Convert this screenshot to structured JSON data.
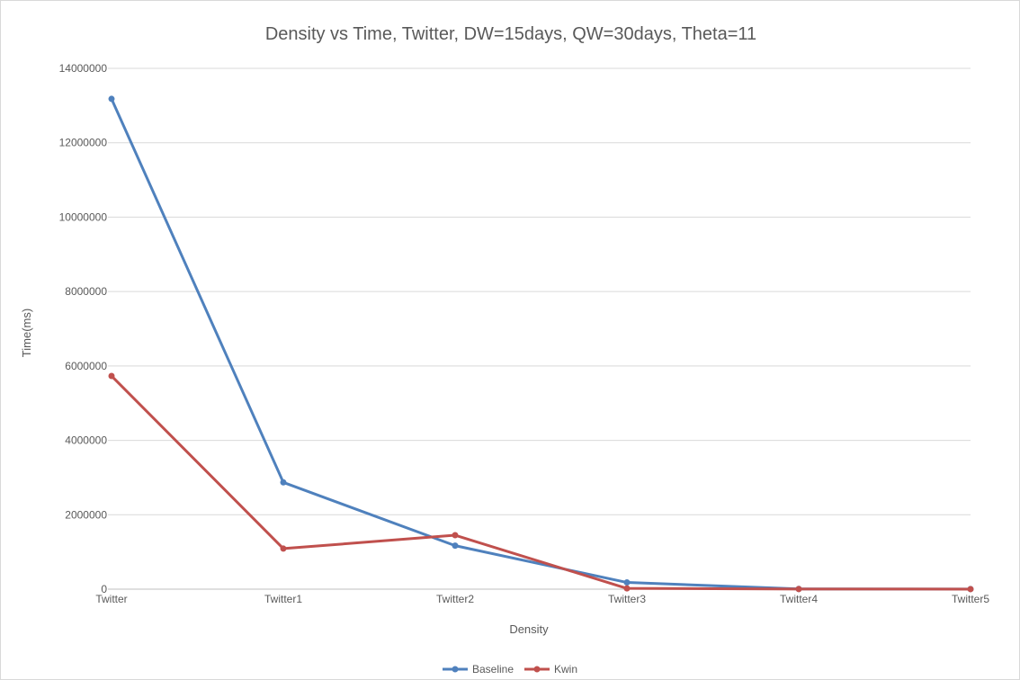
{
  "chart_data": {
    "type": "line",
    "title": "Density vs Time, Twitter, DW=15days, QW=30days, Theta=11",
    "xlabel": "Density",
    "ylabel": "Time(ms)",
    "categories": [
      "Twitter",
      "Twitter1",
      "Twitter2",
      "Twitter3",
      "Twitter4",
      "Twitter5"
    ],
    "ylim": [
      0,
      14000000
    ],
    "yticks": [
      "0",
      "2000000",
      "4000000",
      "6000000",
      "8000000",
      "10000000",
      "12000000",
      "14000000"
    ],
    "grid": true,
    "legend_position": "bottom",
    "series": [
      {
        "name": "Baseline",
        "color": "#4f81bd",
        "values": [
          13180000,
          2870000,
          1170000,
          180000,
          5000,
          2000
        ]
      },
      {
        "name": "Kwin",
        "color": "#c0504d",
        "values": [
          5730000,
          1090000,
          1450000,
          20000,
          3000,
          1000
        ]
      }
    ]
  }
}
